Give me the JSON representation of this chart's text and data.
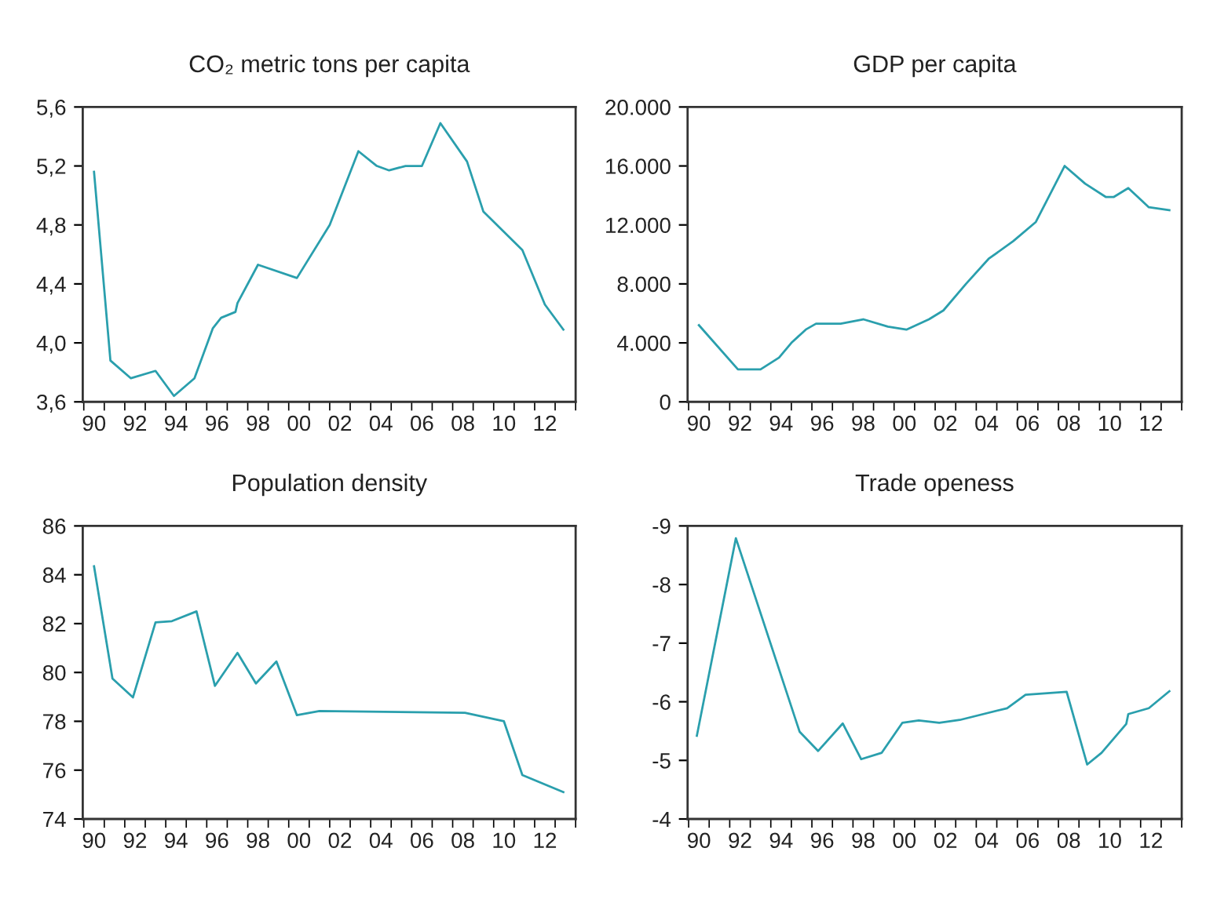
{
  "chart_data": [
    {
      "type": "line",
      "title": "CO₂ metric tons per capita",
      "color": "#2a9fad",
      "grid": false,
      "legend": false,
      "x": [
        1990,
        1990.8,
        1991.8,
        1993,
        1993.9,
        1994.9,
        1995.8,
        1996.2,
        1996.9,
        1997,
        1998,
        1999.9,
        2001.5,
        2002.9,
        2003.8,
        2004.4,
        2005.2,
        2006,
        2006.9,
        2008.2,
        2009,
        2010.9,
        2012,
        2012.9
      ],
      "values": [
        5.16,
        3.88,
        3.76,
        3.81,
        3.64,
        3.76,
        4.1,
        4.17,
        4.21,
        4.27,
        4.53,
        4.44,
        4.8,
        5.3,
        5.2,
        5.17,
        5.2,
        5.2,
        5.49,
        5.23,
        4.89,
        4.63,
        4.26,
        4.09
      ],
      "xlim": [
        1989.45,
        2013.5
      ],
      "ylim": [
        3.6,
        5.6
      ],
      "yticks": [
        {
          "value": 3.6,
          "label": "3,6"
        },
        {
          "value": 4.0,
          "label": "4,0"
        },
        {
          "value": 4.4,
          "label": "4,4"
        },
        {
          "value": 4.8,
          "label": "4,8"
        },
        {
          "value": 5.2,
          "label": "5,2"
        },
        {
          "value": 5.6,
          "label": "5,6"
        }
      ],
      "xticks": [
        {
          "value": 1989.5,
          "label": null
        },
        {
          "value": 1990,
          "label": "90"
        },
        {
          "value": 1990.5,
          "label": null
        },
        {
          "value": 1991.5,
          "label": null
        },
        {
          "value": 1992,
          "label": "92"
        },
        {
          "value": 1992.5,
          "label": null
        },
        {
          "value": 1993.5,
          "label": null
        },
        {
          "value": 1994,
          "label": "94"
        },
        {
          "value": 1994.5,
          "label": null
        },
        {
          "value": 1995.5,
          "label": null
        },
        {
          "value": 1996,
          "label": "96"
        },
        {
          "value": 1996.5,
          "label": null
        },
        {
          "value": 1997.5,
          "label": null
        },
        {
          "value": 1998,
          "label": "98"
        },
        {
          "value": 1998.5,
          "label": null
        },
        {
          "value": 1999.5,
          "label": null
        },
        {
          "value": 2000,
          "label": "00"
        },
        {
          "value": 2000.5,
          "label": null
        },
        {
          "value": 2001.5,
          "label": null
        },
        {
          "value": 2002,
          "label": "02"
        },
        {
          "value": 2002.5,
          "label": null
        },
        {
          "value": 2003.5,
          "label": null
        },
        {
          "value": 2004,
          "label": "04"
        },
        {
          "value": 2004.5,
          "label": null
        },
        {
          "value": 2005.5,
          "label": null
        },
        {
          "value": 2006,
          "label": "06"
        },
        {
          "value": 2006.5,
          "label": null
        },
        {
          "value": 2007.5,
          "label": null
        },
        {
          "value": 2008,
          "label": "08"
        },
        {
          "value": 2008.5,
          "label": null
        },
        {
          "value": 2009.5,
          "label": null
        },
        {
          "value": 2010,
          "label": "10"
        },
        {
          "value": 2010.5,
          "label": null
        },
        {
          "value": 2011.5,
          "label": null
        },
        {
          "value": 2012,
          "label": "12"
        },
        {
          "value": 2012.5,
          "label": null
        },
        {
          "value": 2013.5,
          "label": null
        }
      ]
    },
    {
      "type": "line",
      "title": "GDP per capita",
      "color": "#2a9fad",
      "grid": false,
      "legend": false,
      "x": [
        1990,
        1991.9,
        1993,
        1993.9,
        1994.5,
        1995.2,
        1995.7,
        1996.9,
        1998,
        1999.2,
        2000.1,
        2001.2,
        2001.9,
        2003,
        2004.1,
        2005.3,
        2006.4,
        2007.8,
        2008.8,
        2009.8,
        2010.2,
        2010.9,
        2011.9,
        2012.9
      ],
      "values": [
        5200,
        2200,
        2200,
        3000,
        4000,
        4900,
        5300,
        5300,
        5600,
        5100,
        4900,
        5600,
        6200,
        8000,
        9700,
        10900,
        12200,
        16000,
        14800,
        13900,
        13900,
        14500,
        13200,
        13000
      ],
      "xlim": [
        1989.45,
        2013.5
      ],
      "ylim": [
        0,
        20000
      ],
      "yticks": [
        0,
        {
          "value": 4000,
          "label": "4.000"
        },
        {
          "value": 8000,
          "label": "8.000"
        },
        {
          "value": 12000,
          "label": "12.000"
        },
        {
          "value": 16000,
          "label": "16.000"
        },
        {
          "value": 20000,
          "label": "20.000"
        }
      ],
      "xticks": [
        {
          "value": 1989.5,
          "label": null
        },
        {
          "value": 1990,
          "label": "90"
        },
        {
          "value": 1990.5,
          "label": null
        },
        {
          "value": 1991.5,
          "label": null
        },
        {
          "value": 1992,
          "label": "92"
        },
        {
          "value": 1992.5,
          "label": null
        },
        {
          "value": 1993.5,
          "label": null
        },
        {
          "value": 1994,
          "label": "94"
        },
        {
          "value": 1994.5,
          "label": null
        },
        {
          "value": 1995.5,
          "label": null
        },
        {
          "value": 1996,
          "label": "96"
        },
        {
          "value": 1996.5,
          "label": null
        },
        {
          "value": 1997.5,
          "label": null
        },
        {
          "value": 1998,
          "label": "98"
        },
        {
          "value": 1998.5,
          "label": null
        },
        {
          "value": 1999.5,
          "label": null
        },
        {
          "value": 2000,
          "label": "00"
        },
        {
          "value": 2000.5,
          "label": null
        },
        {
          "value": 2001.5,
          "label": null
        },
        {
          "value": 2002,
          "label": "02"
        },
        {
          "value": 2002.5,
          "label": null
        },
        {
          "value": 2003.5,
          "label": null
        },
        {
          "value": 2004,
          "label": "04"
        },
        {
          "value": 2004.5,
          "label": null
        },
        {
          "value": 2005.5,
          "label": null
        },
        {
          "value": 2006,
          "label": "06"
        },
        {
          "value": 2006.5,
          "label": null
        },
        {
          "value": 2007.5,
          "label": null
        },
        {
          "value": 2008,
          "label": "08"
        },
        {
          "value": 2008.5,
          "label": null
        },
        {
          "value": 2009.5,
          "label": null
        },
        {
          "value": 2010,
          "label": "10"
        },
        {
          "value": 2010.5,
          "label": null
        },
        {
          "value": 2011.5,
          "label": null
        },
        {
          "value": 2012,
          "label": "12"
        },
        {
          "value": 2012.5,
          "label": null
        },
        {
          "value": 2013.5,
          "label": null
        }
      ]
    },
    {
      "type": "line",
      "title": "Population density",
      "color": "#2a9fad",
      "grid": false,
      "legend": false,
      "x": [
        1990,
        1990.9,
        1991.9,
        1993,
        1993.8,
        1995,
        1995.9,
        1997,
        1997.9,
        1998.9,
        1999.9,
        2001,
        2008.1,
        2010,
        2010.9,
        2012.9
      ],
      "values": [
        84.35,
        79.75,
        78.98,
        82.05,
        82.1,
        82.5,
        79.45,
        80.8,
        79.55,
        80.45,
        78.25,
        78.42,
        78.35,
        78.0,
        75.8,
        75.1
      ],
      "xlim": [
        1989.45,
        2013.5
      ],
      "ylim": [
        74,
        86
      ],
      "yticks": [
        74,
        76,
        78,
        80,
        82,
        84,
        86
      ],
      "xticks": [
        {
          "value": 1989.5,
          "label": null
        },
        {
          "value": 1990,
          "label": "90"
        },
        {
          "value": 1990.5,
          "label": null
        },
        {
          "value": 1991.5,
          "label": null
        },
        {
          "value": 1992,
          "label": "92"
        },
        {
          "value": 1992.5,
          "label": null
        },
        {
          "value": 1993.5,
          "label": null
        },
        {
          "value": 1994,
          "label": "94"
        },
        {
          "value": 1994.5,
          "label": null
        },
        {
          "value": 1995.5,
          "label": null
        },
        {
          "value": 1996,
          "label": "96"
        },
        {
          "value": 1996.5,
          "label": null
        },
        {
          "value": 1997.5,
          "label": null
        },
        {
          "value": 1998,
          "label": "98"
        },
        {
          "value": 1998.5,
          "label": null
        },
        {
          "value": 1999.5,
          "label": null
        },
        {
          "value": 2000,
          "label": "00"
        },
        {
          "value": 2000.5,
          "label": null
        },
        {
          "value": 2001.5,
          "label": null
        },
        {
          "value": 2002,
          "label": "02"
        },
        {
          "value": 2002.5,
          "label": null
        },
        {
          "value": 2003.5,
          "label": null
        },
        {
          "value": 2004,
          "label": "04"
        },
        {
          "value": 2004.5,
          "label": null
        },
        {
          "value": 2005.5,
          "label": null
        },
        {
          "value": 2006,
          "label": "06"
        },
        {
          "value": 2006.5,
          "label": null
        },
        {
          "value": 2007.5,
          "label": null
        },
        {
          "value": 2008,
          "label": "08"
        },
        {
          "value": 2008.5,
          "label": null
        },
        {
          "value": 2009.5,
          "label": null
        },
        {
          "value": 2010,
          "label": "10"
        },
        {
          "value": 2010.5,
          "label": null
        },
        {
          "value": 2011.5,
          "label": null
        },
        {
          "value": 2012,
          "label": "12"
        },
        {
          "value": 2012.5,
          "label": null
        },
        {
          "value": 2013.5,
          "label": null
        }
      ]
    },
    {
      "type": "line",
      "title": "Trade openess",
      "color": "#2a9fad",
      "grid": false,
      "legend": false,
      "x": [
        1989.9,
        1991.8,
        1994.9,
        1995.8,
        1997,
        1997.9,
        1998.9,
        1999.9,
        2000.7,
        2001.7,
        2002.7,
        2005,
        2005.9,
        2007.9,
        2008.9,
        2009.6,
        2010.8,
        2010.9,
        2011.9,
        2012.9
      ],
      "values": [
        -5.42,
        -8.79,
        -5.49,
        -5.16,
        -5.63,
        -5.02,
        -5.13,
        -5.64,
        -5.68,
        -5.64,
        -5.69,
        -5.89,
        -6.12,
        -6.17,
        -4.93,
        -5.13,
        -5.62,
        -5.79,
        -5.89,
        -6.18
      ],
      "xlim": [
        1989.45,
        2013.5
      ],
      "ylim": [
        -4,
        -9
      ],
      "yticks": [
        -9,
        -8,
        -7,
        -6,
        -5,
        -4
      ],
      "xticks": [
        {
          "value": 1989.5,
          "label": null
        },
        {
          "value": 1990,
          "label": "90"
        },
        {
          "value": 1990.5,
          "label": null
        },
        {
          "value": 1991.5,
          "label": null
        },
        {
          "value": 1992,
          "label": "92"
        },
        {
          "value": 1992.5,
          "label": null
        },
        {
          "value": 1993.5,
          "label": null
        },
        {
          "value": 1994,
          "label": "94"
        },
        {
          "value": 1994.5,
          "label": null
        },
        {
          "value": 1995.5,
          "label": null
        },
        {
          "value": 1996,
          "label": "96"
        },
        {
          "value": 1996.5,
          "label": null
        },
        {
          "value": 1997.5,
          "label": null
        },
        {
          "value": 1998,
          "label": "98"
        },
        {
          "value": 1998.5,
          "label": null
        },
        {
          "value": 1999.5,
          "label": null
        },
        {
          "value": 2000,
          "label": "00"
        },
        {
          "value": 2000.5,
          "label": null
        },
        {
          "value": 2001.5,
          "label": null
        },
        {
          "value": 2002,
          "label": "02"
        },
        {
          "value": 2002.5,
          "label": null
        },
        {
          "value": 2003.5,
          "label": null
        },
        {
          "value": 2004,
          "label": "04"
        },
        {
          "value": 2004.5,
          "label": null
        },
        {
          "value": 2005.5,
          "label": null
        },
        {
          "value": 2006,
          "label": "06"
        },
        {
          "value": 2006.5,
          "label": null
        },
        {
          "value": 2007.5,
          "label": null
        },
        {
          "value": 2008,
          "label": "08"
        },
        {
          "value": 2008.5,
          "label": null
        },
        {
          "value": 2009.5,
          "label": null
        },
        {
          "value": 2010,
          "label": "10"
        },
        {
          "value": 2010.5,
          "label": null
        },
        {
          "value": 2011.5,
          "label": null
        },
        {
          "value": 2012,
          "label": "12"
        },
        {
          "value": 2012.5,
          "label": null
        },
        {
          "value": 2013.5,
          "label": null
        }
      ]
    }
  ]
}
